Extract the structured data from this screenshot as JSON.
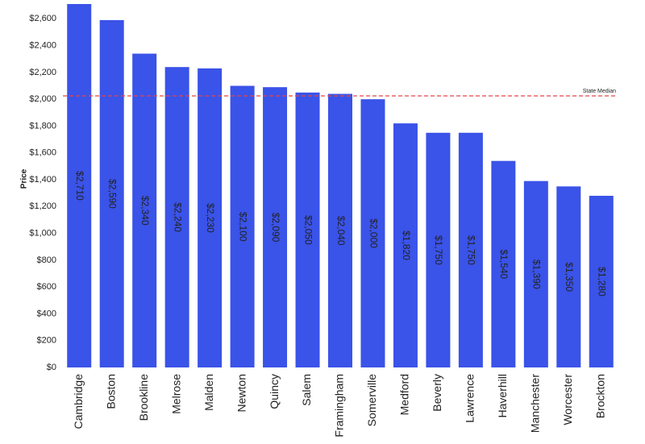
{
  "chart_data": {
    "type": "bar",
    "y_label": "Price",
    "categories": [
      "Cambridge",
      "Boston",
      "Brookline",
      "Melrose",
      "Malden",
      "Newton",
      "Quincy",
      "Salem",
      "Framingham",
      "Somerville",
      "Medford",
      "Beverly",
      "Lawrence",
      "Haverhill",
      "Manchester",
      "Worcester",
      "Brockton"
    ],
    "values": [
      2710,
      2590,
      2340,
      2240,
      2230,
      2100,
      2090,
      2050,
      2040,
      2000,
      1820,
      1750,
      1750,
      1540,
      1390,
      1350,
      1280
    ],
    "value_labels": [
      "$2,710",
      "$2,590",
      "$2,340",
      "$2,240",
      "$2,230",
      "$2,100",
      "$2,090",
      "$2,050",
      "$2,040",
      "$2,000",
      "$1,820",
      "$1,750",
      "$1,750",
      "$1,540",
      "$1,390",
      "$1,350",
      "$1,280"
    ],
    "color": "#3a53e8",
    "ylim": [
      0,
      2740
    ],
    "yticks": [
      {
        "value": 0,
        "label": "$0"
      },
      {
        "value": 200,
        "label": "$200"
      },
      {
        "value": 400,
        "label": "$400"
      },
      {
        "value": 600,
        "label": "$600"
      },
      {
        "value": 800,
        "label": "$800"
      },
      {
        "value": 1000,
        "label": "$1,000"
      },
      {
        "value": 1200,
        "label": "$1,200"
      },
      {
        "value": 1400,
        "label": "$1,400"
      },
      {
        "value": 1600,
        "label": "$1,600"
      },
      {
        "value": 1800,
        "label": "$1,800"
      },
      {
        "value": 2000,
        "label": "$2,000"
      },
      {
        "value": 2200,
        "label": "$2,200"
      },
      {
        "value": 2400,
        "label": "$2,400"
      },
      {
        "value": 2600,
        "label": "$2,600"
      }
    ],
    "reference_line": {
      "label": "State Median",
      "value": 2025,
      "color": "#e8434a"
    }
  }
}
